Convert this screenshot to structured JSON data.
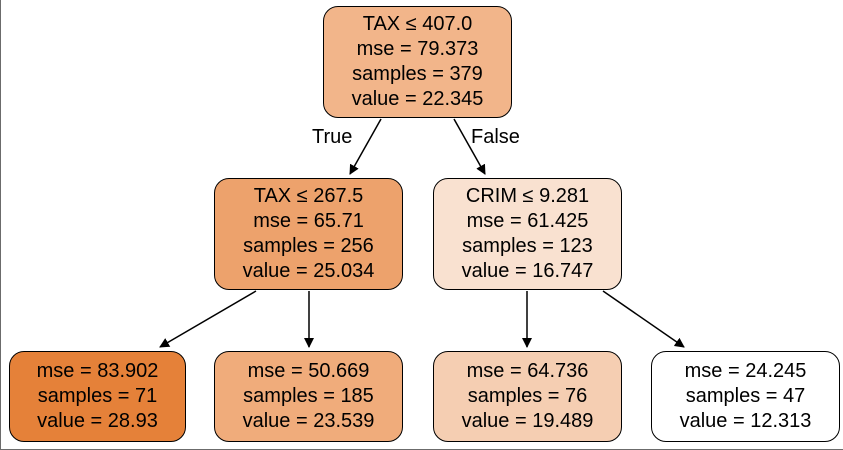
{
  "tree": {
    "nodes": [
      {
        "id": "n0",
        "lines": [
          "TAX ≤ 407.0",
          "mse = 79.373",
          "samples = 379",
          "value = 22.345"
        ],
        "fill": "#f2b58a"
      },
      {
        "id": "n1",
        "lines": [
          "TAX ≤ 267.5",
          "mse = 65.71",
          "samples = 256",
          "value = 25.034"
        ],
        "fill": "#eda26c"
      },
      {
        "id": "n2",
        "lines": [
          "CRIM ≤ 9.281",
          "mse = 61.425",
          "samples = 123",
          "value = 16.747"
        ],
        "fill": "#f9e1d0"
      },
      {
        "id": "n3",
        "lines": [
          "mse = 83.902",
          "samples = 71",
          "value = 28.93"
        ],
        "fill": "#e58139"
      },
      {
        "id": "n4",
        "lines": [
          "mse = 50.669",
          "samples = 185",
          "value = 23.539"
        ],
        "fill": "#f0ac7b"
      },
      {
        "id": "n5",
        "lines": [
          "mse = 64.736",
          "samples = 76",
          "value = 19.489"
        ],
        "fill": "#f5ceb2"
      },
      {
        "id": "n6",
        "lines": [
          "mse = 24.245",
          "samples = 47",
          "value = 12.313"
        ],
        "fill": "#ffffff"
      }
    ],
    "edge_labels": {
      "true": "True",
      "false": "False"
    },
    "edges": [
      {
        "from": "n0",
        "to": "n1",
        "name": "edge-root-to-left"
      },
      {
        "from": "n0",
        "to": "n2",
        "name": "edge-root-to-right"
      },
      {
        "from": "n1",
        "to": "n3",
        "name": "edge-left-to-leaf-1"
      },
      {
        "from": "n1",
        "to": "n4",
        "name": "edge-left-to-leaf-2"
      },
      {
        "from": "n2",
        "to": "n5",
        "name": "edge-right-to-leaf-3"
      },
      {
        "from": "n2",
        "to": "n6",
        "name": "edge-right-to-leaf-4"
      }
    ]
  }
}
